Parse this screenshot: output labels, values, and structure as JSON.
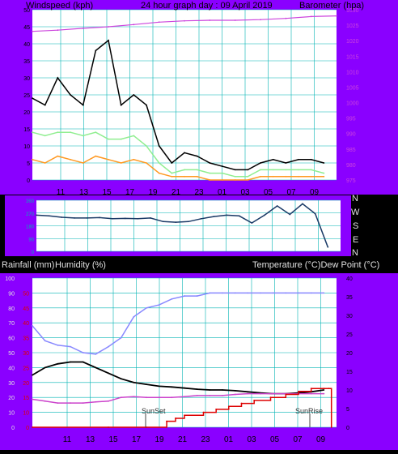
{
  "header": {
    "windspeed_label": "Windspeed (kph)",
    "title": "24 hour graph day : 09 April 2019",
    "barometer_label": "Barometer (hpa)"
  },
  "wind_dir": {
    "labels": [
      "N",
      "W",
      "S",
      "E",
      "N"
    ],
    "left_ticks": [
      "360",
      "270",
      "180",
      "90",
      "0"
    ]
  },
  "bottom_header": {
    "rain_label": "Rainfall (mm)",
    "humidity_label": "Humidity (%)",
    "temp_label": "Temperature (°C)Dew Point (°C)"
  },
  "annotations": {
    "sunset": "SunSet",
    "sunrise": "SunRise"
  },
  "colors": {
    "frame": "#8a00ff",
    "grid": "#00b3b3",
    "pressure": "#cc44dd",
    "wind_avg": "#90ee90",
    "wind_gust": "#000000",
    "wind_low": "#ff9922",
    "direction": "#1a3a66",
    "humidity": "#8888ff",
    "temperature": "#000000",
    "dewpoint": "#cc44cc",
    "rain": "#dd0000"
  },
  "chart_data": [
    {
      "type": "line",
      "title": "24 hour graph day : 09 April 2019",
      "xlabel": "",
      "ylabel": "Windspeed (kph)",
      "y2label": "Barometer (hpa)",
      "x_ticks": [
        "11",
        "13",
        "15",
        "17",
        "19",
        "21",
        "23",
        "01",
        "03",
        "05",
        "07",
        "09"
      ],
      "ylim": [
        0,
        50
      ],
      "y_ticks": [
        0,
        5,
        10,
        15,
        20,
        25,
        30,
        35,
        40,
        45,
        50
      ],
      "y2lim": [
        975,
        1030
      ],
      "y2_ticks": [
        975,
        980,
        985,
        990,
        995,
        1000,
        1005,
        1010,
        1015,
        1020,
        1025,
        1030
      ],
      "series": [
        {
          "key": "gust",
          "axis": "y",
          "x": [
            0,
            1,
            2,
            3,
            4,
            5,
            6,
            7,
            8,
            9,
            10,
            11,
            12,
            13,
            14,
            15,
            16,
            17,
            18,
            19,
            20,
            21,
            22,
            23
          ],
          "values": [
            24,
            22,
            30,
            25,
            22,
            38,
            41,
            22,
            25,
            22,
            10,
            5,
            8,
            7,
            5,
            4,
            3,
            3,
            5,
            6,
            5,
            6,
            6,
            5
          ]
        },
        {
          "key": "avg",
          "axis": "y",
          "x": [
            0,
            1,
            2,
            3,
            4,
            5,
            6,
            7,
            8,
            9,
            10,
            11,
            12,
            13,
            14,
            15,
            16,
            17,
            18,
            19,
            20,
            21,
            22,
            23
          ],
          "values": [
            14,
            13,
            14,
            14,
            13,
            14,
            12,
            12,
            13,
            10,
            5,
            2,
            3,
            3,
            2,
            2,
            1,
            1,
            3,
            3,
            3,
            3,
            3,
            2
          ]
        },
        {
          "key": "low",
          "axis": "y",
          "x": [
            0,
            1,
            2,
            3,
            4,
            5,
            6,
            7,
            8,
            9,
            10,
            11,
            12,
            13,
            14,
            15,
            16,
            17,
            18,
            19,
            20,
            21,
            22,
            23
          ],
          "values": [
            6,
            5,
            7,
            6,
            5,
            7,
            6,
            5,
            6,
            5,
            2,
            1,
            1,
            1,
            0,
            0,
            0,
            0,
            1,
            1,
            1,
            1,
            1,
            1
          ]
        },
        {
          "key": "pressure",
          "axis": "y2",
          "x": [
            0,
            2,
            4,
            6,
            8,
            10,
            12,
            14,
            16,
            18,
            20,
            22,
            24
          ],
          "values": [
            1023,
            1023.4,
            1024,
            1024.5,
            1025.2,
            1026,
            1026.4,
            1026.6,
            1026.6,
            1026.8,
            1027.2,
            1027.8,
            1028
          ]
        }
      ]
    },
    {
      "type": "line",
      "ylabel": "Wind direction",
      "ylim": [
        0,
        360
      ],
      "y_ticks": [
        0,
        90,
        180,
        270,
        360
      ],
      "x_ticks": [
        "11",
        "13",
        "15",
        "17",
        "19",
        "21",
        "23",
        "01",
        "03",
        "05",
        "07",
        "09"
      ],
      "series": [
        {
          "key": "direction",
          "x": [
            0,
            1,
            2,
            3,
            4,
            5,
            6,
            7,
            8,
            9,
            10,
            11,
            12,
            13,
            14,
            15,
            16,
            17,
            18,
            19,
            20,
            21,
            22,
            23
          ],
          "values": [
            255,
            250,
            240,
            235,
            235,
            238,
            230,
            232,
            230,
            235,
            210,
            205,
            210,
            230,
            245,
            255,
            250,
            200,
            255,
            320,
            260,
            335,
            265,
            30
          ]
        }
      ]
    },
    {
      "type": "line",
      "ylabel": "Rainfall (mm)",
      "y2label": "Temperature (°C)Dew Point (°C)",
      "x_ticks": [
        "11",
        "13",
        "15",
        "17",
        "19",
        "21",
        "23",
        "01",
        "03",
        "05",
        "07",
        "09"
      ],
      "ylim": [
        0,
        100
      ],
      "y_ticks": [
        0,
        10,
        20,
        30,
        40,
        50,
        60,
        70,
        80,
        90,
        100
      ],
      "rain_ticks": [
        0,
        10,
        15,
        20,
        25,
        30,
        35,
        40,
        45,
        50
      ],
      "y2lim": [
        0,
        40
      ],
      "y2_ticks": [
        0,
        5,
        10,
        15,
        20,
        25,
        30,
        35,
        40
      ],
      "series": [
        {
          "key": "humidity",
          "axis": "y",
          "x": [
            0,
            1,
            2,
            3,
            4,
            5,
            6,
            7,
            8,
            9,
            10,
            11,
            12,
            13,
            14,
            15,
            16,
            17,
            18,
            19,
            20,
            21,
            22,
            23
          ],
          "values": [
            68,
            58,
            55,
            54,
            50,
            49,
            54,
            60,
            74,
            80,
            82,
            86,
            88,
            88,
            90,
            90,
            90,
            90,
            90,
            90,
            90,
            90,
            90,
            90
          ]
        },
        {
          "key": "temperature",
          "axis": "y2",
          "x": [
            0,
            1,
            2,
            3,
            4,
            5,
            6,
            7,
            8,
            9,
            10,
            11,
            12,
            13,
            14,
            15,
            16,
            17,
            18,
            19,
            20,
            21,
            22,
            23
          ],
          "values": [
            14,
            16,
            17,
            17.5,
            17.5,
            16,
            14.5,
            13,
            12,
            11.5,
            11,
            10.8,
            10.5,
            10.2,
            10,
            10,
            9.8,
            9.5,
            9.2,
            9,
            9,
            9.2,
            9.5,
            10
          ]
        },
        {
          "key": "dewpoint",
          "axis": "y2",
          "x": [
            0,
            1,
            2,
            3,
            4,
            5,
            6,
            7,
            8,
            9,
            10,
            11,
            12,
            13,
            14,
            15,
            16,
            17,
            18,
            19,
            20,
            21,
            22,
            23
          ],
          "values": [
            7.5,
            7,
            6.5,
            6.5,
            6.5,
            6.8,
            7,
            8,
            8.2,
            8,
            8,
            8,
            8.2,
            8.5,
            8.5,
            8.5,
            8.8,
            9,
            9,
            9,
            9,
            9,
            9,
            9
          ]
        },
        {
          "key": "rain",
          "axis": "rain",
          "x": [
            0,
            6,
            9,
            10.6,
            11.3,
            12,
            13.5,
            14.5,
            15.5,
            16.5,
            17.5,
            18.8,
            20,
            21,
            22,
            23,
            23.4,
            23.6
          ],
          "values": [
            0,
            0,
            0,
            2,
            3,
            4,
            5,
            6,
            7,
            8,
            9,
            10,
            11,
            12,
            13,
            13,
            13,
            0
          ]
        }
      ]
    }
  ]
}
